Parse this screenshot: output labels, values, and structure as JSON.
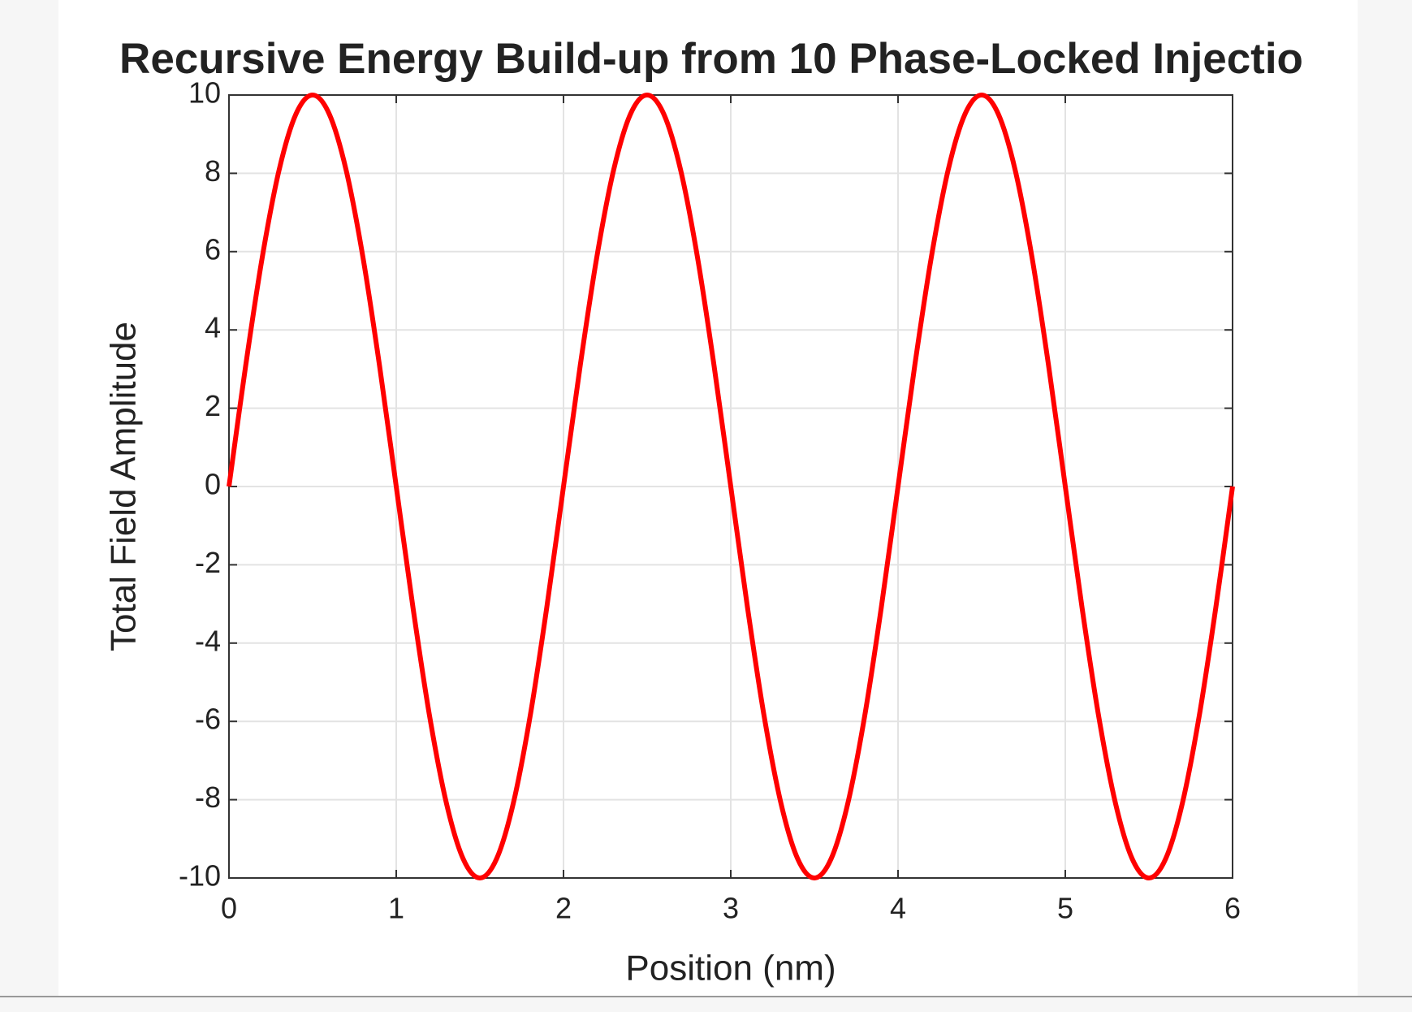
{
  "chart_data": {
    "type": "line",
    "title": "Recursive Energy Build-up from 10 Phase-Locked Injectio",
    "xlabel": "Position (nm)",
    "ylabel": "Total Field Amplitude",
    "x": [
      0,
      0.1,
      0.2,
      0.3,
      0.4,
      0.5,
      0.6,
      0.7,
      0.8,
      0.9,
      1,
      1.1,
      1.2,
      1.3,
      1.4,
      1.5,
      1.6,
      1.7,
      1.8,
      1.9,
      2,
      2.1,
      2.2,
      2.3,
      2.4,
      2.5,
      2.6,
      2.7,
      2.8,
      2.9,
      3,
      3.1,
      3.2,
      3.3,
      3.4,
      3.5,
      3.6,
      3.7,
      3.8,
      3.9,
      4,
      4.1,
      4.2,
      4.3,
      4.4,
      4.5,
      4.6,
      4.7,
      4.8,
      4.9,
      5,
      5.1,
      5.2,
      5.3,
      5.4,
      5.5,
      5.6,
      5.7,
      5.8,
      5.9,
      6
    ],
    "series": [
      {
        "color": "#ff0000",
        "values": [
          0,
          3.09,
          5.88,
          8.09,
          9.51,
          10,
          9.51,
          8.09,
          5.88,
          3.09,
          0,
          -3.09,
          -5.88,
          -8.09,
          -9.51,
          -10,
          -9.51,
          -8.09,
          -5.88,
          -3.09,
          0,
          3.09,
          5.88,
          8.09,
          9.51,
          10,
          9.51,
          8.09,
          5.88,
          3.09,
          0,
          -3.09,
          -5.88,
          -8.09,
          -9.51,
          -10,
          -9.51,
          -8.09,
          -5.88,
          -3.09,
          0,
          3.09,
          5.88,
          8.09,
          9.51,
          10,
          9.51,
          8.09,
          5.88,
          3.09,
          0,
          -3.09,
          -5.88,
          -8.09,
          -9.51,
          -10,
          -9.51,
          -8.09,
          -5.88,
          -3.09,
          0
        ]
      }
    ],
    "xlim": [
      0,
      6
    ],
    "xticks": [
      0,
      1,
      2,
      3,
      4,
      5,
      6
    ],
    "ylim": [
      -10,
      10
    ],
    "yticks": [
      -10,
      -8,
      -6,
      -4,
      -2,
      0,
      2,
      4,
      6,
      8,
      10
    ],
    "grid": true
  }
}
